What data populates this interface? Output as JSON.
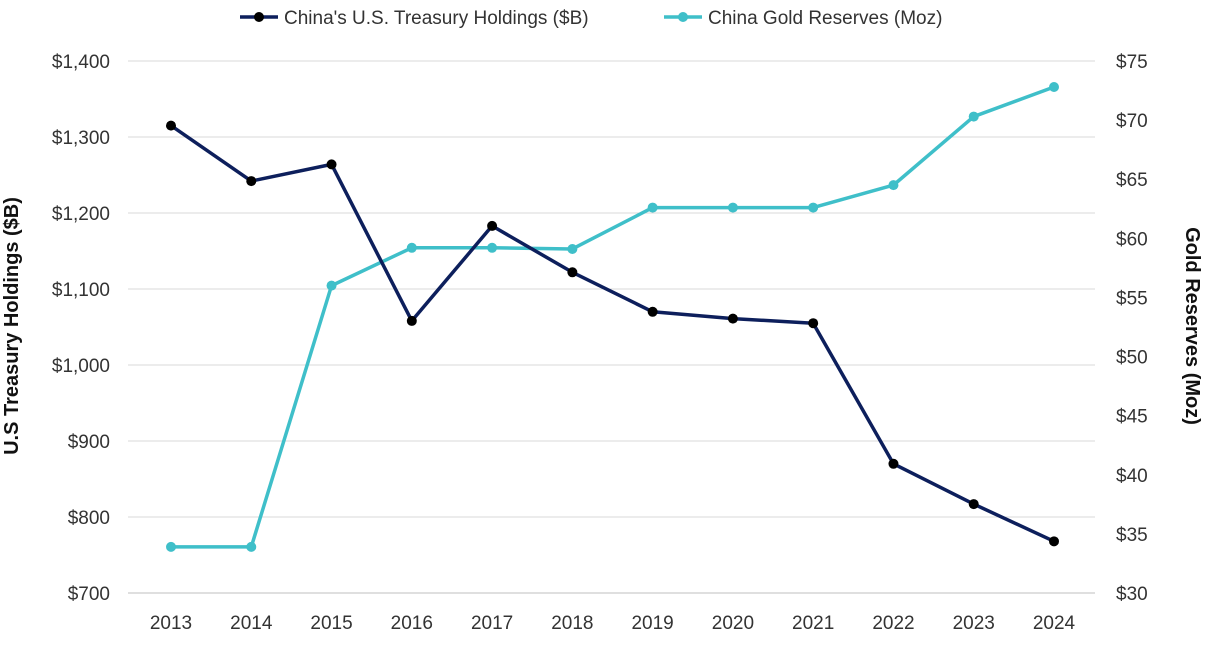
{
  "chart_data": {
    "type": "line",
    "x": [
      "2013",
      "2014",
      "2015",
      "2016",
      "2017",
      "2018",
      "2019",
      "2020",
      "2021",
      "2022",
      "2023",
      "2024"
    ],
    "series": [
      {
        "name": "China's U.S. Treasury Holdings ($B)",
        "axis": "left",
        "color": "#0d1f5c",
        "values": [
          1315,
          1242,
          1264,
          1058,
          1183,
          1122,
          1070,
          1061,
          1055,
          870,
          817,
          768
        ]
      },
      {
        "name": "China Gold Reserves (Moz)",
        "axis": "right",
        "color": "#3fbfc9",
        "values": [
          33.9,
          33.9,
          56.0,
          59.2,
          59.2,
          59.1,
          62.6,
          62.6,
          62.6,
          64.5,
          70.3,
          72.8
        ]
      }
    ],
    "ylabel_left": "U.S Treasury Holdings ($B)",
    "ylabel_right": "Gold Reserves (Moz)",
    "ylim_left": [
      700,
      1400
    ],
    "ylim_right": [
      30,
      75
    ],
    "yticks_left": [
      "$700",
      "$800",
      "$900",
      "$1,000",
      "$1,100",
      "$1,200",
      "$1,300",
      "$1,400"
    ],
    "yticks_right": [
      "$30",
      "$35",
      "$40",
      "$45",
      "$50",
      "$55",
      "$60",
      "$65",
      "$70",
      "$75"
    ],
    "grid": "horizontal",
    "legend_position": "top"
  }
}
